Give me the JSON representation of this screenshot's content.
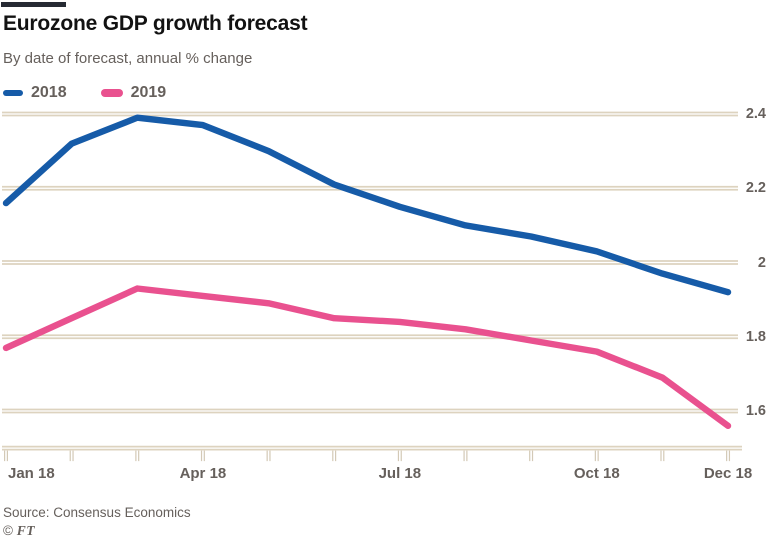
{
  "header": {
    "title": "Eurozone GDP growth forecast",
    "subtitle": "By date of forecast, annual % change"
  },
  "legend": [
    {
      "label": "2018",
      "color": "#165ba8"
    },
    {
      "label": "2019",
      "color": "#e9518f"
    }
  ],
  "chart_data": {
    "type": "line",
    "title": "Eurozone GDP growth forecast",
    "subtitle": "By date of forecast, annual % change",
    "xlabel": "",
    "ylabel": "annual % change",
    "categories": [
      "Jan 18",
      "Feb 18",
      "Mar 18",
      "Apr 18",
      "May 18",
      "Jun 18",
      "Jul 18",
      "Aug 18",
      "Sep 18",
      "Oct 18",
      "Nov 18",
      "Dec 18"
    ],
    "series": [
      {
        "name": "2018",
        "color": "#165ba8",
        "values": [
          2.16,
          2.32,
          2.39,
          2.37,
          2.3,
          2.21,
          2.15,
          2.1,
          2.07,
          2.03,
          1.97,
          1.92
        ]
      },
      {
        "name": "2019",
        "color": "#e9518f",
        "values": [
          1.77,
          1.85,
          1.93,
          1.91,
          1.89,
          1.85,
          1.84,
          1.82,
          1.79,
          1.76,
          1.69,
          1.56
        ]
      }
    ],
    "y_ticks": [
      2.4,
      2.2,
      2.0,
      1.8,
      1.6
    ],
    "y_tick_labels": [
      "2.4",
      "2.2",
      "2",
      "1.8",
      "1.6"
    ],
    "ylim": [
      1.5,
      2.45
    ],
    "x_axis": {
      "tick_count": 12,
      "visible_labels": [
        {
          "index": 0,
          "text": "Jan 18",
          "align": "left"
        },
        {
          "index": 3,
          "text": "Apr 18",
          "align": "center"
        },
        {
          "index": 6,
          "text": "Jul 18",
          "align": "center"
        },
        {
          "index": 9,
          "text": "Oct 18",
          "align": "center"
        },
        {
          "index": 11,
          "text": "Dec 18",
          "align": "center"
        }
      ]
    },
    "grid": "horizontal",
    "legend_position": "top-left",
    "y_axis_side": "right"
  },
  "footer": {
    "source": "Source: Consensus Economics",
    "copyright_prefix": "© ",
    "copyright_brand": "FT"
  },
  "colors": {
    "background": "#ffffff",
    "top_bar": "#262a33",
    "title_text": "#121212",
    "muted_text": "#66605c",
    "gridline": "#ddd3bf",
    "tick": "#d3c9b6",
    "series_2018": "#165ba8",
    "series_2019": "#e9518f"
  }
}
